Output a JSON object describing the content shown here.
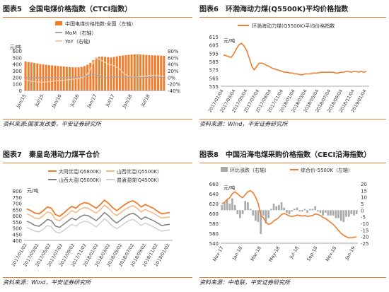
{
  "colors": {
    "accent": "#ef7d2e",
    "accent_light": "#f5b482",
    "accent_pale": "#f9cfa9",
    "grey": "#a9a9a9",
    "grey_dark": "#7f7f7f",
    "grey_light": "#cfcfcf"
  },
  "panels": [
    {
      "fig": "图表5",
      "title": "全国电煤价格指数（CTCI指数）",
      "source": "资料来源:国家发改委，平安证券研究所"
    },
    {
      "fig": "图表6",
      "title": "环渤海动力煤(Q5500K)平均价格指数",
      "source": "资料来源：Wind，平安证券研究所"
    },
    {
      "fig": "图表7",
      "title": "秦皇岛港动力煤平仓价",
      "source": "资料来源：Wind，平安证券研究所"
    },
    {
      "fig": "图表8",
      "title": "中国沿海电煤采购价格指数（CECI沿海指数）",
      "source": "资料来源：中电联，平安证券研究所"
    }
  ],
  "chart_data": [
    {
      "type": "bar",
      "unit_left": "元/吨",
      "legend": [
        {
          "name": "中国电煤价格指数-全国（左轴）",
          "kind": "bar"
        },
        {
          "name": "MoM（右轴）",
          "kind": "line"
        },
        {
          "name": "YoY（右轴）",
          "kind": "line"
        }
      ],
      "ylim_left": [
        0,
        600
      ],
      "ylim_right": [
        -40,
        80
      ],
      "yticks_left": [
        "0",
        "100",
        "200",
        "300",
        "400",
        "500",
        "600"
      ],
      "yticks_right": [
        "-40%",
        "-20%",
        "0%",
        "20%",
        "40%",
        "60%",
        "80%"
      ],
      "xticks": [
        "Jan/15",
        "Jul/15",
        "Jan/16",
        "Jul/16",
        "Jan/17",
        "Jul/17",
        "Jan/18",
        "Jul/18"
      ],
      "series": [
        {
          "name": "中国电煤价格指数-全国（左轴）",
          "axis": "left",
          "values": [
            440,
            432,
            425,
            418,
            410,
            402,
            395,
            390,
            385,
            380,
            376,
            372,
            368,
            364,
            360,
            356,
            352,
            350,
            352,
            358,
            370,
            390,
            420,
            460,
            500,
            512,
            515,
            510,
            505,
            500,
            508,
            518,
            525,
            530,
            535,
            540,
            545,
            548,
            550,
            546,
            542,
            538,
            536,
            534,
            532,
            530,
            528,
            526
          ]
        },
        {
          "name": "MoM（右轴）",
          "axis": "right",
          "values": [
            -1,
            -2,
            -2,
            -2,
            -2,
            -2,
            -2,
            -1,
            -1,
            -1,
            -1,
            -1,
            -1,
            -1,
            -1,
            -1,
            -1,
            -1,
            1,
            2,
            3,
            5,
            7,
            9,
            9,
            2,
            1,
            -1,
            -1,
            -1,
            2,
            2,
            1,
            1,
            1,
            1,
            1,
            0,
            0,
            -1,
            -1,
            -1,
            0,
            0,
            0,
            0,
            0,
            0
          ]
        },
        {
          "name": "YoY（右轴）",
          "axis": "right",
          "values": [
            -8,
            -10,
            -12,
            -13,
            -14,
            -15,
            -15,
            -14,
            -13,
            -12,
            -11,
            -10,
            -10,
            -9,
            -8,
            -7,
            -6,
            -5,
            -3,
            -1,
            2,
            10,
            25,
            45,
            58,
            55,
            50,
            45,
            40,
            38,
            35,
            30,
            25,
            15,
            8,
            3,
            2,
            1,
            1,
            3,
            3,
            4,
            6,
            6,
            6,
            5,
            4,
            3
          ]
        }
      ]
    },
    {
      "type": "line",
      "legend": [
        {
          "name": "环渤海动力煤(Q5500K)平均价格指数"
        }
      ],
      "unit": "元/吨",
      "ylim": [
        555,
        615
      ],
      "yticks": [
        "555",
        "565",
        "575",
        "585",
        "595",
        "605",
        "615"
      ],
      "xticks": [
        "2017/01/04",
        "2017/03/04",
        "2017/05/04",
        "2017/07/04",
        "2017/09/04",
        "2017/11/04",
        "2018/01/04",
        "2018/03/04",
        "2018/05/04",
        "2018/07/04",
        "2018/09/04",
        "2018/11/04",
        "2019/01/04"
      ],
      "values": [
        593,
        592,
        591,
        590,
        594,
        600,
        605,
        607,
        604,
        599,
        590,
        580,
        575,
        579,
        583,
        583,
        582,
        580,
        579,
        577,
        576,
        575,
        574,
        573,
        572,
        572,
        571,
        571,
        570,
        570,
        569,
        569,
        570,
        570,
        570,
        571,
        571,
        571,
        572,
        572,
        572,
        572,
        572,
        572,
        571,
        571,
        572,
        572,
        573,
        573,
        572,
        573,
        573,
        572,
        573,
        572,
        573
      ]
    },
    {
      "type": "line",
      "unit": "元/吨",
      "ylim": [
        400,
        800
      ],
      "yticks": [
        "400",
        "450",
        "500",
        "550",
        "600",
        "650",
        "700",
        "750",
        "800"
      ],
      "xticks": [
        "2017/01/02",
        "2017/03/02",
        "2017/05/02",
        "2017/07/02",
        "2017/09/02",
        "2017/11/02",
        "2018/01/02",
        "2018/03/02",
        "2018/05/02",
        "2018/07/02",
        "2018/09/02",
        "2018/11/02",
        "2019/01/02"
      ],
      "series": [
        {
          "name": "大同优混(Q5800K)",
          "values": [
            655,
            640,
            620,
            615,
            640,
            670,
            660,
            610,
            595,
            620,
            650,
            675,
            660,
            690,
            705,
            700,
            680,
            660,
            690,
            725,
            700,
            665,
            640,
            665,
            690,
            710,
            720,
            700,
            670,
            690,
            675,
            660,
            635,
            615,
            620,
            625
          ]
        },
        {
          "name": "山西优混(Q5500K)",
          "values": [
            615,
            600,
            580,
            575,
            600,
            630,
            620,
            570,
            560,
            585,
            610,
            640,
            625,
            650,
            665,
            660,
            640,
            620,
            650,
            685,
            660,
            625,
            600,
            625,
            650,
            670,
            680,
            660,
            630,
            650,
            635,
            620,
            600,
            580,
            585,
            590
          ]
        },
        {
          "name": "山西大混(Q5000K)",
          "values": [
            555,
            540,
            520,
            515,
            540,
            570,
            560,
            515,
            505,
            530,
            555,
            580,
            565,
            590,
            605,
            600,
            580,
            560,
            590,
            625,
            600,
            565,
            540,
            565,
            590,
            610,
            620,
            600,
            570,
            590,
            575,
            560,
            540,
            520,
            525,
            530
          ]
        },
        {
          "name": "普通混煤(Q4500K)",
          "values": [
            505,
            490,
            475,
            470,
            490,
            520,
            510,
            470,
            460,
            480,
            505,
            530,
            515,
            540,
            555,
            550,
            530,
            510,
            540,
            575,
            550,
            515,
            495,
            515,
            540,
            560,
            570,
            550,
            520,
            540,
            525,
            510,
            490,
            475,
            480,
            485
          ]
        }
      ]
    },
    {
      "type": "bar",
      "unit_left": "元/吨",
      "legend": [
        {
          "name": "环比涨跌（右轴）",
          "kind": "bar"
        },
        {
          "name": "综合价-5500K（左轴）",
          "kind": "line"
        }
      ],
      "ylim_left": [
        540,
        660
      ],
      "ylim_right": [
        -25,
        20
      ],
      "yticks_left": [
        "540",
        "560",
        "580",
        "600",
        "620",
        "640",
        "660"
      ],
      "yticks_right": [
        "-25",
        "-20",
        "-15",
        "-10",
        "-5",
        "0",
        "5",
        "10",
        "15",
        "20"
      ],
      "xticks": [
        "Nov-17",
        "Jan-18",
        "Mar-18",
        "May-18",
        "Jul-18",
        "Sep-18",
        "Nov-18",
        "Jan-19"
      ],
      "series": [
        {
          "name": "环比涨跌（右轴）",
          "axis": "right",
          "values": [
            4,
            6,
            8,
            5,
            9,
            4,
            -3,
            -6,
            -3,
            7,
            6,
            1,
            -4,
            -8,
            -9,
            -18,
            -4,
            -10,
            -6,
            1,
            5,
            3,
            4,
            6,
            2,
            -2,
            -3,
            -1,
            1,
            2,
            -1,
            -1,
            1,
            -2,
            1,
            1,
            3,
            -1,
            -2,
            -4,
            -2,
            -4,
            -4,
            -4,
            -6,
            -6,
            -8,
            -9,
            -5,
            -5,
            -3,
            -4,
            -3
          ]
        },
        {
          "name": "综合价-5500K（左轴）",
          "axis": "left",
          "values": [
            620,
            623,
            628,
            632,
            640,
            644,
            640,
            635,
            632,
            638,
            644,
            646,
            642,
            633,
            620,
            596,
            592,
            582,
            578,
            580,
            585,
            588,
            592,
            598,
            600,
            598,
            595,
            594,
            595,
            597,
            596,
            595,
            596,
            594,
            595,
            596,
            599,
            598,
            596,
            592,
            590,
            586,
            582,
            578,
            572,
            566,
            560,
            556,
            553,
            551,
            551,
            552,
            553
          ]
        }
      ]
    }
  ]
}
